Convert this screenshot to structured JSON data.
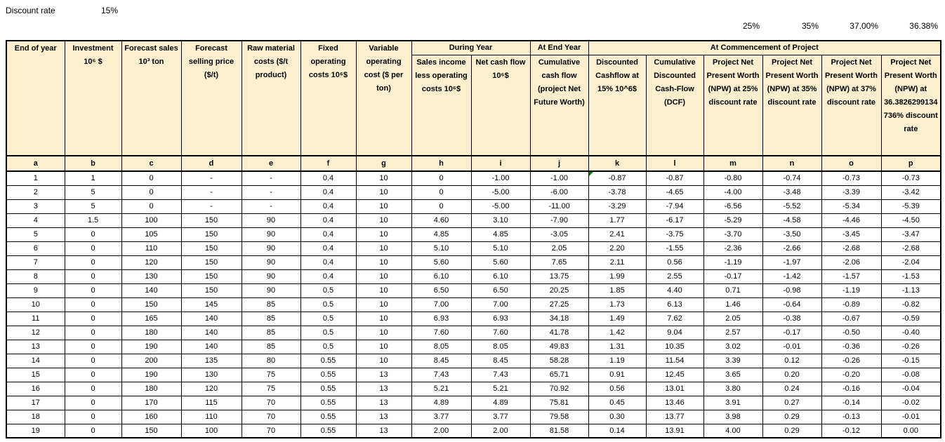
{
  "page": {
    "discount_rate_label": "Discount rate",
    "discount_rate_value": "15%",
    "top_percentages": [
      "25%",
      "35%",
      "37.00%",
      "36.38%"
    ],
    "colors": {
      "header_bg": "#FBEFCE",
      "border": "#000000",
      "error_marker": "#008000"
    }
  },
  "table": {
    "group_headers": {
      "during_year": "During Year",
      "at_end_year": "At End Year",
      "at_commencement": "At Commencement of Project"
    },
    "columns": [
      {
        "letter": "a",
        "label": "End of year"
      },
      {
        "letter": "b",
        "label": "Investment 10⁶ $"
      },
      {
        "letter": "c",
        "label": "Forecast sales 10³ ton"
      },
      {
        "letter": "d",
        "label": "Forecast selling price ($/t)"
      },
      {
        "letter": "e",
        "label": "Raw material costs ($/t product)"
      },
      {
        "letter": "f",
        "label": "Fixed operating costs 10⁶$"
      },
      {
        "letter": "g",
        "label": "Variable operating cost ($ per ton)"
      },
      {
        "letter": "h",
        "label": "Sales income less operating costs 10⁶$"
      },
      {
        "letter": "i",
        "label": "Net cash flow 10⁶$"
      },
      {
        "letter": "j",
        "label": "Cumulative cash flow (project Net Future Worth)"
      },
      {
        "letter": "k",
        "label": "Discounted Cashflow at 15% 10^6$"
      },
      {
        "letter": "l",
        "label": "Cumulative Discounted Cash-Flow (DCF)"
      },
      {
        "letter": "m",
        "label": "Project Net Present Worth (NPW) at 25% discount rate"
      },
      {
        "letter": "n",
        "label": "Project Net Present Worth (NPW) at 35% discount rate"
      },
      {
        "letter": "o",
        "label": "Project Net Present Worth (NPW) at 37% discount rate"
      },
      {
        "letter": "p",
        "label": "Project Net Present Worth (NPW) at 36.3826299134736% discount rate"
      }
    ],
    "error_marker_cell": {
      "row": 1,
      "column": "k"
    },
    "rows": [
      [
        "1",
        "1",
        "0",
        "-",
        "-",
        "0.4",
        "10",
        "0",
        "-1.00",
        "-1.00",
        "-0.87",
        "-0.87",
        "-0.80",
        "-0.74",
        "-0.73",
        "-0.73"
      ],
      [
        "2",
        "5",
        "0",
        "-",
        "-",
        "0.4",
        "10",
        "0",
        "-5.00",
        "-6.00",
        "-3.78",
        "-4.65",
        "-4.00",
        "-3.48",
        "-3.39",
        "-3.42"
      ],
      [
        "3",
        "5",
        "0",
        "-",
        "-",
        "0.4",
        "10",
        "0",
        "-5.00",
        "-11.00",
        "-3.29",
        "-7.94",
        "-6.56",
        "-5.52",
        "-5.34",
        "-5.39"
      ],
      [
        "4",
        "1.5",
        "100",
        "150",
        "90",
        "0.4",
        "10",
        "4.60",
        "3.10",
        "-7.90",
        "1.77",
        "-6.17",
        "-5.29",
        "-4.58",
        "-4.46",
        "-4.50"
      ],
      [
        "5",
        "0",
        "105",
        "150",
        "90",
        "0.4",
        "10",
        "4.85",
        "4.85",
        "-3.05",
        "2.41",
        "-3.75",
        "-3.70",
        "-3.50",
        "-3.45",
        "-3.47"
      ],
      [
        "6",
        "0",
        "110",
        "150",
        "90",
        "0.4",
        "10",
        "5.10",
        "5.10",
        "2.05",
        "2.20",
        "-1.55",
        "-2.36",
        "-2.66",
        "-2.68",
        "-2.68"
      ],
      [
        "7",
        "0",
        "120",
        "150",
        "90",
        "0.4",
        "10",
        "5.60",
        "5.60",
        "7.65",
        "2.11",
        "0.56",
        "-1.19",
        "-1.97",
        "-2.06",
        "-2.04"
      ],
      [
        "8",
        "0",
        "130",
        "150",
        "90",
        "0.4",
        "10",
        "6.10",
        "6.10",
        "13.75",
        "1.99",
        "2.55",
        "-0.17",
        "-1.42",
        "-1.57",
        "-1.53"
      ],
      [
        "9",
        "0",
        "140",
        "150",
        "90",
        "0.5",
        "10",
        "6.50",
        "6.50",
        "20.25",
        "1.85",
        "4.40",
        "0.71",
        "-0.98",
        "-1.19",
        "-1.13"
      ],
      [
        "10",
        "0",
        "150",
        "145",
        "85",
        "0.5",
        "10",
        "7.00",
        "7.00",
        "27.25",
        "1.73",
        "6.13",
        "1.46",
        "-0.64",
        "-0.89",
        "-0.82"
      ],
      [
        "11",
        "0",
        "165",
        "140",
        "85",
        "0.5",
        "10",
        "6.93",
        "6.93",
        "34.18",
        "1.49",
        "7.62",
        "2.05",
        "-0.38",
        "-0.67",
        "-0.59"
      ],
      [
        "12",
        "0",
        "180",
        "140",
        "85",
        "0.5",
        "10",
        "7.60",
        "7.60",
        "41.78",
        "1.42",
        "9.04",
        "2.57",
        "-0.17",
        "-0.50",
        "-0.40"
      ],
      [
        "13",
        "0",
        "190",
        "140",
        "85",
        "0.5",
        "10",
        "8.05",
        "8.05",
        "49.83",
        "1.31",
        "10.35",
        "3.02",
        "-0.01",
        "-0.36",
        "-0.26"
      ],
      [
        "14",
        "0",
        "200",
        "135",
        "80",
        "0.55",
        "10",
        "8.45",
        "8.45",
        "58.28",
        "1.19",
        "11.54",
        "3.39",
        "0.12",
        "-0.26",
        "-0.15"
      ],
      [
        "15",
        "0",
        "190",
        "130",
        "75",
        "0.55",
        "13",
        "7.43",
        "7.43",
        "65.71",
        "0.91",
        "12.45",
        "3.65",
        "0.20",
        "-0.20",
        "-0.08"
      ],
      [
        "16",
        "0",
        "180",
        "120",
        "75",
        "0.55",
        "13",
        "5.21",
        "5.21",
        "70.92",
        "0.56",
        "13.01",
        "3.80",
        "0.24",
        "-0.16",
        "-0.04"
      ],
      [
        "17",
        "0",
        "170",
        "115",
        "70",
        "0.55",
        "13",
        "4.89",
        "4.89",
        "75.81",
        "0.45",
        "13.46",
        "3.91",
        "0.27",
        "-0.14",
        "-0.02"
      ],
      [
        "18",
        "0",
        "160",
        "110",
        "70",
        "0.55",
        "13",
        "3.77",
        "3.77",
        "79.58",
        "0.30",
        "13.77",
        "3.98",
        "0.29",
        "-0.13",
        "-0.01"
      ],
      [
        "19",
        "0",
        "150",
        "100",
        "70",
        "0.55",
        "13",
        "2.00",
        "2.00",
        "81.58",
        "0.14",
        "13.91",
        "4.00",
        "0.29",
        "-0.12",
        "0.00"
      ]
    ]
  }
}
